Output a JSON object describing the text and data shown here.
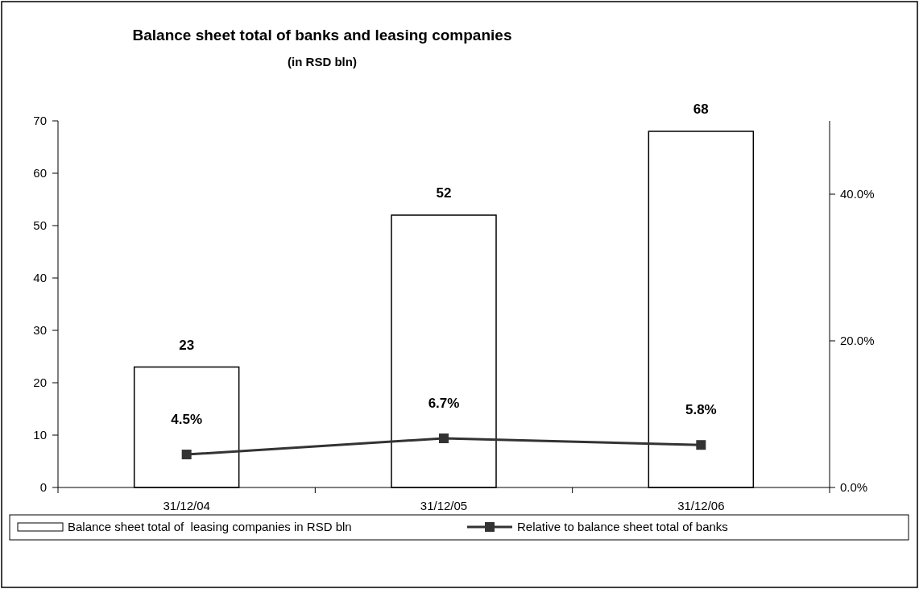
{
  "chart_data": {
    "type": "bar",
    "title": "Balance sheet total of banks and leasing companies",
    "subtitle": "(in RSD bln)",
    "categories": [
      "31/12/04",
      "31/12/05",
      "31/12/06"
    ],
    "series": [
      {
        "name": "Balance sheet total of  leasing companies in RSD bln",
        "color": "#ffffff",
        "values": [
          23,
          52,
          68
        ],
        "value_labels": [
          "23",
          "52",
          "68"
        ]
      },
      {
        "name": "Relative to balance sheet total of banks",
        "type": "line",
        "axis": "y2",
        "color": "#333333",
        "values": [
          4.5,
          6.7,
          5.8
        ],
        "value_labels": [
          "4.5%",
          "6.7%",
          "5.8%"
        ],
        "marker": "square"
      }
    ],
    "ylim": [
      0,
      70
    ],
    "yticks": [
      0,
      10,
      20,
      30,
      40,
      50,
      60,
      70
    ],
    "y2lim": [
      0,
      50
    ],
    "y2ticks": [
      {
        "value": 0,
        "label": "0.0%"
      },
      {
        "value": 20,
        "label": "20.0%"
      },
      {
        "value": 40,
        "label": "40.0%"
      }
    ],
    "legend": "bottom",
    "grid": false
  }
}
